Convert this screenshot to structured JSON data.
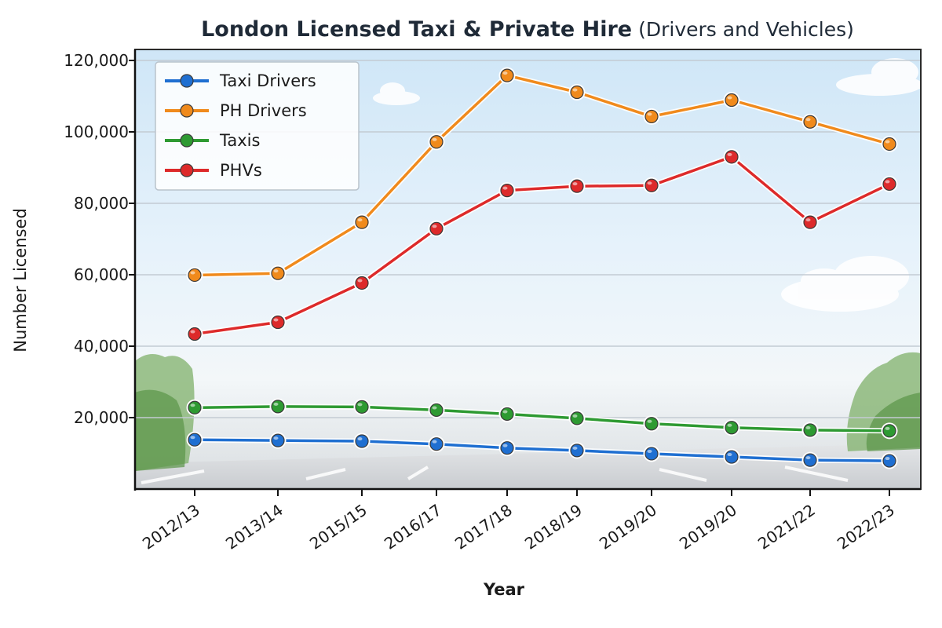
{
  "chart_data": {
    "type": "line",
    "title": "London Licensed Taxi & Private Hire",
    "subtitle": "(Drivers and Vehicles)",
    "xlabel": "Year",
    "ylabel": "Number Licensed",
    "categories": [
      "2012/13",
      "2013/14",
      "2015/15",
      "2016/17",
      "2017/18",
      "2018/19",
      "2019/20",
      "2019/20",
      "2021/22",
      "2022/23"
    ],
    "y_ticks": [
      {
        "value": 20000,
        "label": "20,000"
      },
      {
        "value": 40000,
        "label": "40,000"
      },
      {
        "value": 60000,
        "label": "60,000"
      },
      {
        "value": 80000,
        "label": "80,000"
      },
      {
        "value": 100000,
        "label": "100,000"
      },
      {
        "value": 120000,
        "label": "120,000"
      }
    ],
    "ylim": [
      0,
      122000
    ],
    "grid": true,
    "legend_position": "top-left",
    "series": [
      {
        "name": "Taxi Drivers",
        "color": "#1f6fd1",
        "values": [
          13800,
          13600,
          13400,
          12600,
          11500,
          10800,
          9900,
          9000,
          8100,
          7900
        ]
      },
      {
        "name": "PH Drivers",
        "color": "#f08a1c",
        "values": [
          59900,
          60400,
          74700,
          97200,
          115800,
          111100,
          104300,
          108900,
          102800,
          96600
        ]
      },
      {
        "name": "Taxis",
        "color": "#2e9a32",
        "values": [
          22800,
          23100,
          23000,
          22100,
          21000,
          19800,
          18300,
          17200,
          16500,
          16300
        ]
      },
      {
        "name": "PHVs",
        "color": "#dd2a2a",
        "values": [
          43400,
          46700,
          57700,
          72900,
          83600,
          84800,
          85000,
          93000,
          74700,
          85400
        ]
      }
    ]
  }
}
